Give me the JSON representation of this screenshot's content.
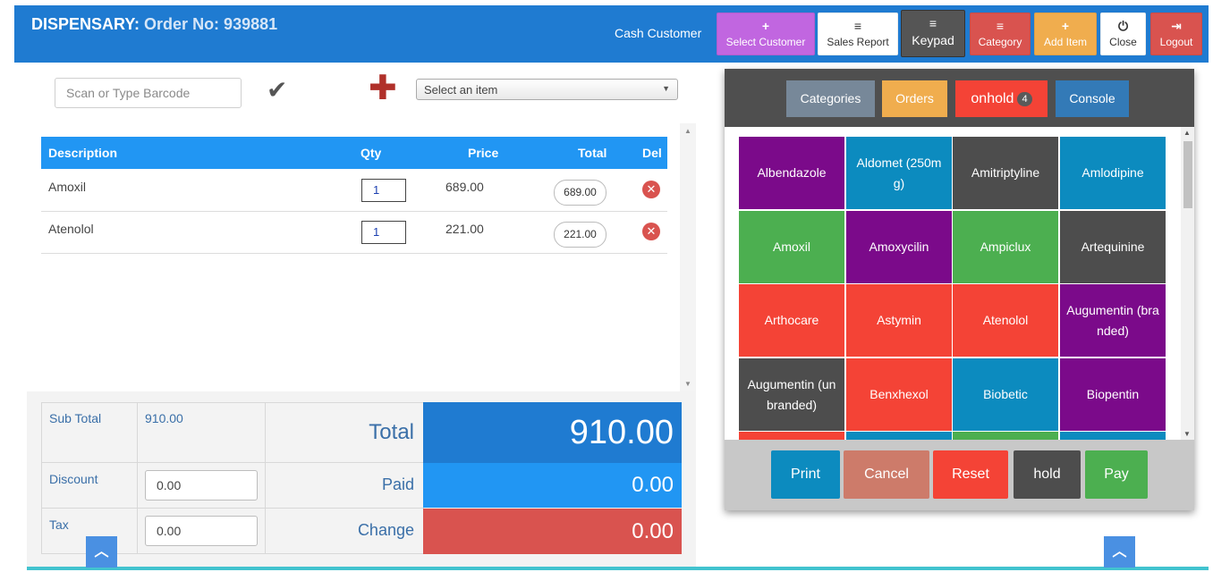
{
  "header": {
    "title_prefix": "DISPENSARY:",
    "order_label": "Order No: 939881",
    "customer": "Cash Customer",
    "buttons": [
      {
        "icon": "+",
        "label": "Select Customer",
        "color": "#c166e0"
      },
      {
        "icon": "≡",
        "label": "Sales Report",
        "color": "#ffffff"
      },
      {
        "icon": "≡",
        "label": "Keypad",
        "color": "#555555"
      },
      {
        "icon": "≡",
        "label": "Category",
        "color": "#d9534f"
      },
      {
        "icon": "+",
        "label": "Add Item",
        "color": "#f0ad4e"
      },
      {
        "icon": "⏻",
        "label": "Close",
        "color": "#ffffff"
      },
      {
        "icon": "⇥",
        "label": "Logout",
        "color": "#d9534f"
      }
    ]
  },
  "search": {
    "barcode_placeholder": "Scan or Type Barcode",
    "item_select": "Select an item"
  },
  "table": {
    "headers": [
      "Description",
      "Qty",
      "Price",
      "Total",
      "Del"
    ],
    "rows": [
      {
        "description": "Amoxil",
        "qty": "1",
        "price": "689.00",
        "total": "689.00"
      },
      {
        "description": "Atenolol",
        "qty": "1",
        "price": "221.00",
        "total": "221.00"
      }
    ]
  },
  "totals": {
    "subtotal_label": "Sub Total",
    "subtotal_value": "910.00",
    "discount_label": "Discount",
    "discount_value": "0.00",
    "tax_label": "Tax",
    "tax_value": "0.00",
    "total_label": "Total",
    "total_value": "910.00",
    "paid_label": "Paid",
    "paid_value": "0.00",
    "change_label": "Change",
    "change_value": "0.00"
  },
  "panel": {
    "tabs": [
      {
        "label": "Categories",
        "color": "#778899"
      },
      {
        "label": "Orders",
        "color": "#f0ad4e"
      },
      {
        "label": "onhold",
        "badge": "4",
        "color": "#f44336"
      },
      {
        "label": "Console",
        "color": "#337ab7"
      }
    ],
    "items": [
      {
        "name": "Albendazole",
        "color": "#7b0a8a"
      },
      {
        "name": "Aldomet (250mg)",
        "color": "#0c8bbf"
      },
      {
        "name": "Amitriptyline",
        "color": "#4d4d4d"
      },
      {
        "name": "Amlodipine",
        "color": "#0c8bbf"
      },
      {
        "name": "Amoxil",
        "color": "#4caf50"
      },
      {
        "name": "Amoxycilin",
        "color": "#7b0a8a"
      },
      {
        "name": "Ampiclux",
        "color": "#4caf50"
      },
      {
        "name": "Artequinine",
        "color": "#4d4d4d"
      },
      {
        "name": "Arthocare",
        "color": "#f44336"
      },
      {
        "name": "Astymin",
        "color": "#f44336"
      },
      {
        "name": "Atenolol",
        "color": "#f44336"
      },
      {
        "name": "Augumentin (branded)",
        "color": "#7b0a8a"
      },
      {
        "name": "Augumentin (unbranded)",
        "color": "#4d4d4d"
      },
      {
        "name": "Benxhexol",
        "color": "#f44336"
      },
      {
        "name": "Biobetic",
        "color": "#0c8bbf"
      },
      {
        "name": "Biopentin",
        "color": "#7b0a8a"
      },
      {
        "name": "",
        "color": "#f44336"
      },
      {
        "name": "",
        "color": "#0c8bbf"
      },
      {
        "name": "",
        "color": "#4caf50"
      },
      {
        "name": "",
        "color": "#0c8bbf"
      }
    ],
    "actions": [
      {
        "label": "Print",
        "color": "#0c8bbf"
      },
      {
        "label": "Cancel",
        "color": "#cd7b6a"
      },
      {
        "label": "Reset",
        "color": "#f44336"
      },
      {
        "label": "hold",
        "color": "#4d4d4d"
      },
      {
        "label": "Pay",
        "color": "#4caf50"
      }
    ]
  }
}
